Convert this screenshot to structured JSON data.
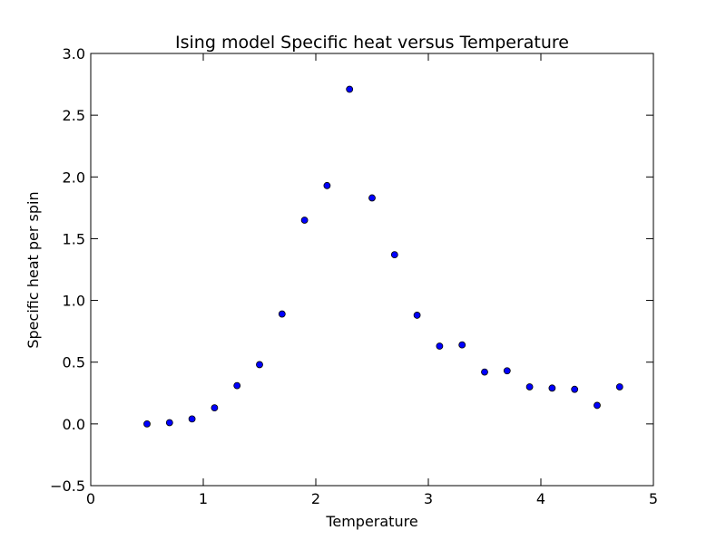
{
  "chart_data": {
    "type": "scatter",
    "title": "Ising model Specific heat versus Temperature",
    "xlabel": "Temperature",
    "ylabel": "Specific heat per spin",
    "xlim": [
      0,
      5
    ],
    "ylim": [
      -0.5,
      3.0
    ],
    "xticks": [
      0,
      1,
      2,
      3,
      4,
      5
    ],
    "xtick_labels": [
      "0",
      "1",
      "2",
      "3",
      "4",
      "5"
    ],
    "yticks": [
      -0.5,
      0.0,
      0.5,
      1.0,
      1.5,
      2.0,
      2.5,
      3.0
    ],
    "ytick_labels": [
      "−0.5",
      "0.0",
      "0.5",
      "1.0",
      "1.5",
      "2.0",
      "2.5",
      "3.0"
    ],
    "grid": false,
    "legend": "none",
    "marker_color": "#0000ff",
    "series": [
      {
        "x": [
          0.5,
          0.7,
          0.9,
          1.1,
          1.3,
          1.5,
          1.7,
          1.9,
          2.1,
          2.3,
          2.5,
          2.7,
          2.9,
          3.1,
          3.3,
          3.5,
          3.7,
          3.9,
          4.1,
          4.3,
          4.5,
          4.7
        ],
        "y": [
          0.0,
          0.01,
          0.04,
          0.13,
          0.31,
          0.48,
          0.89,
          1.65,
          1.93,
          2.71,
          1.83,
          1.37,
          0.88,
          0.63,
          0.64,
          0.42,
          0.43,
          0.3,
          0.29,
          0.28,
          0.15,
          0.3
        ]
      }
    ]
  }
}
